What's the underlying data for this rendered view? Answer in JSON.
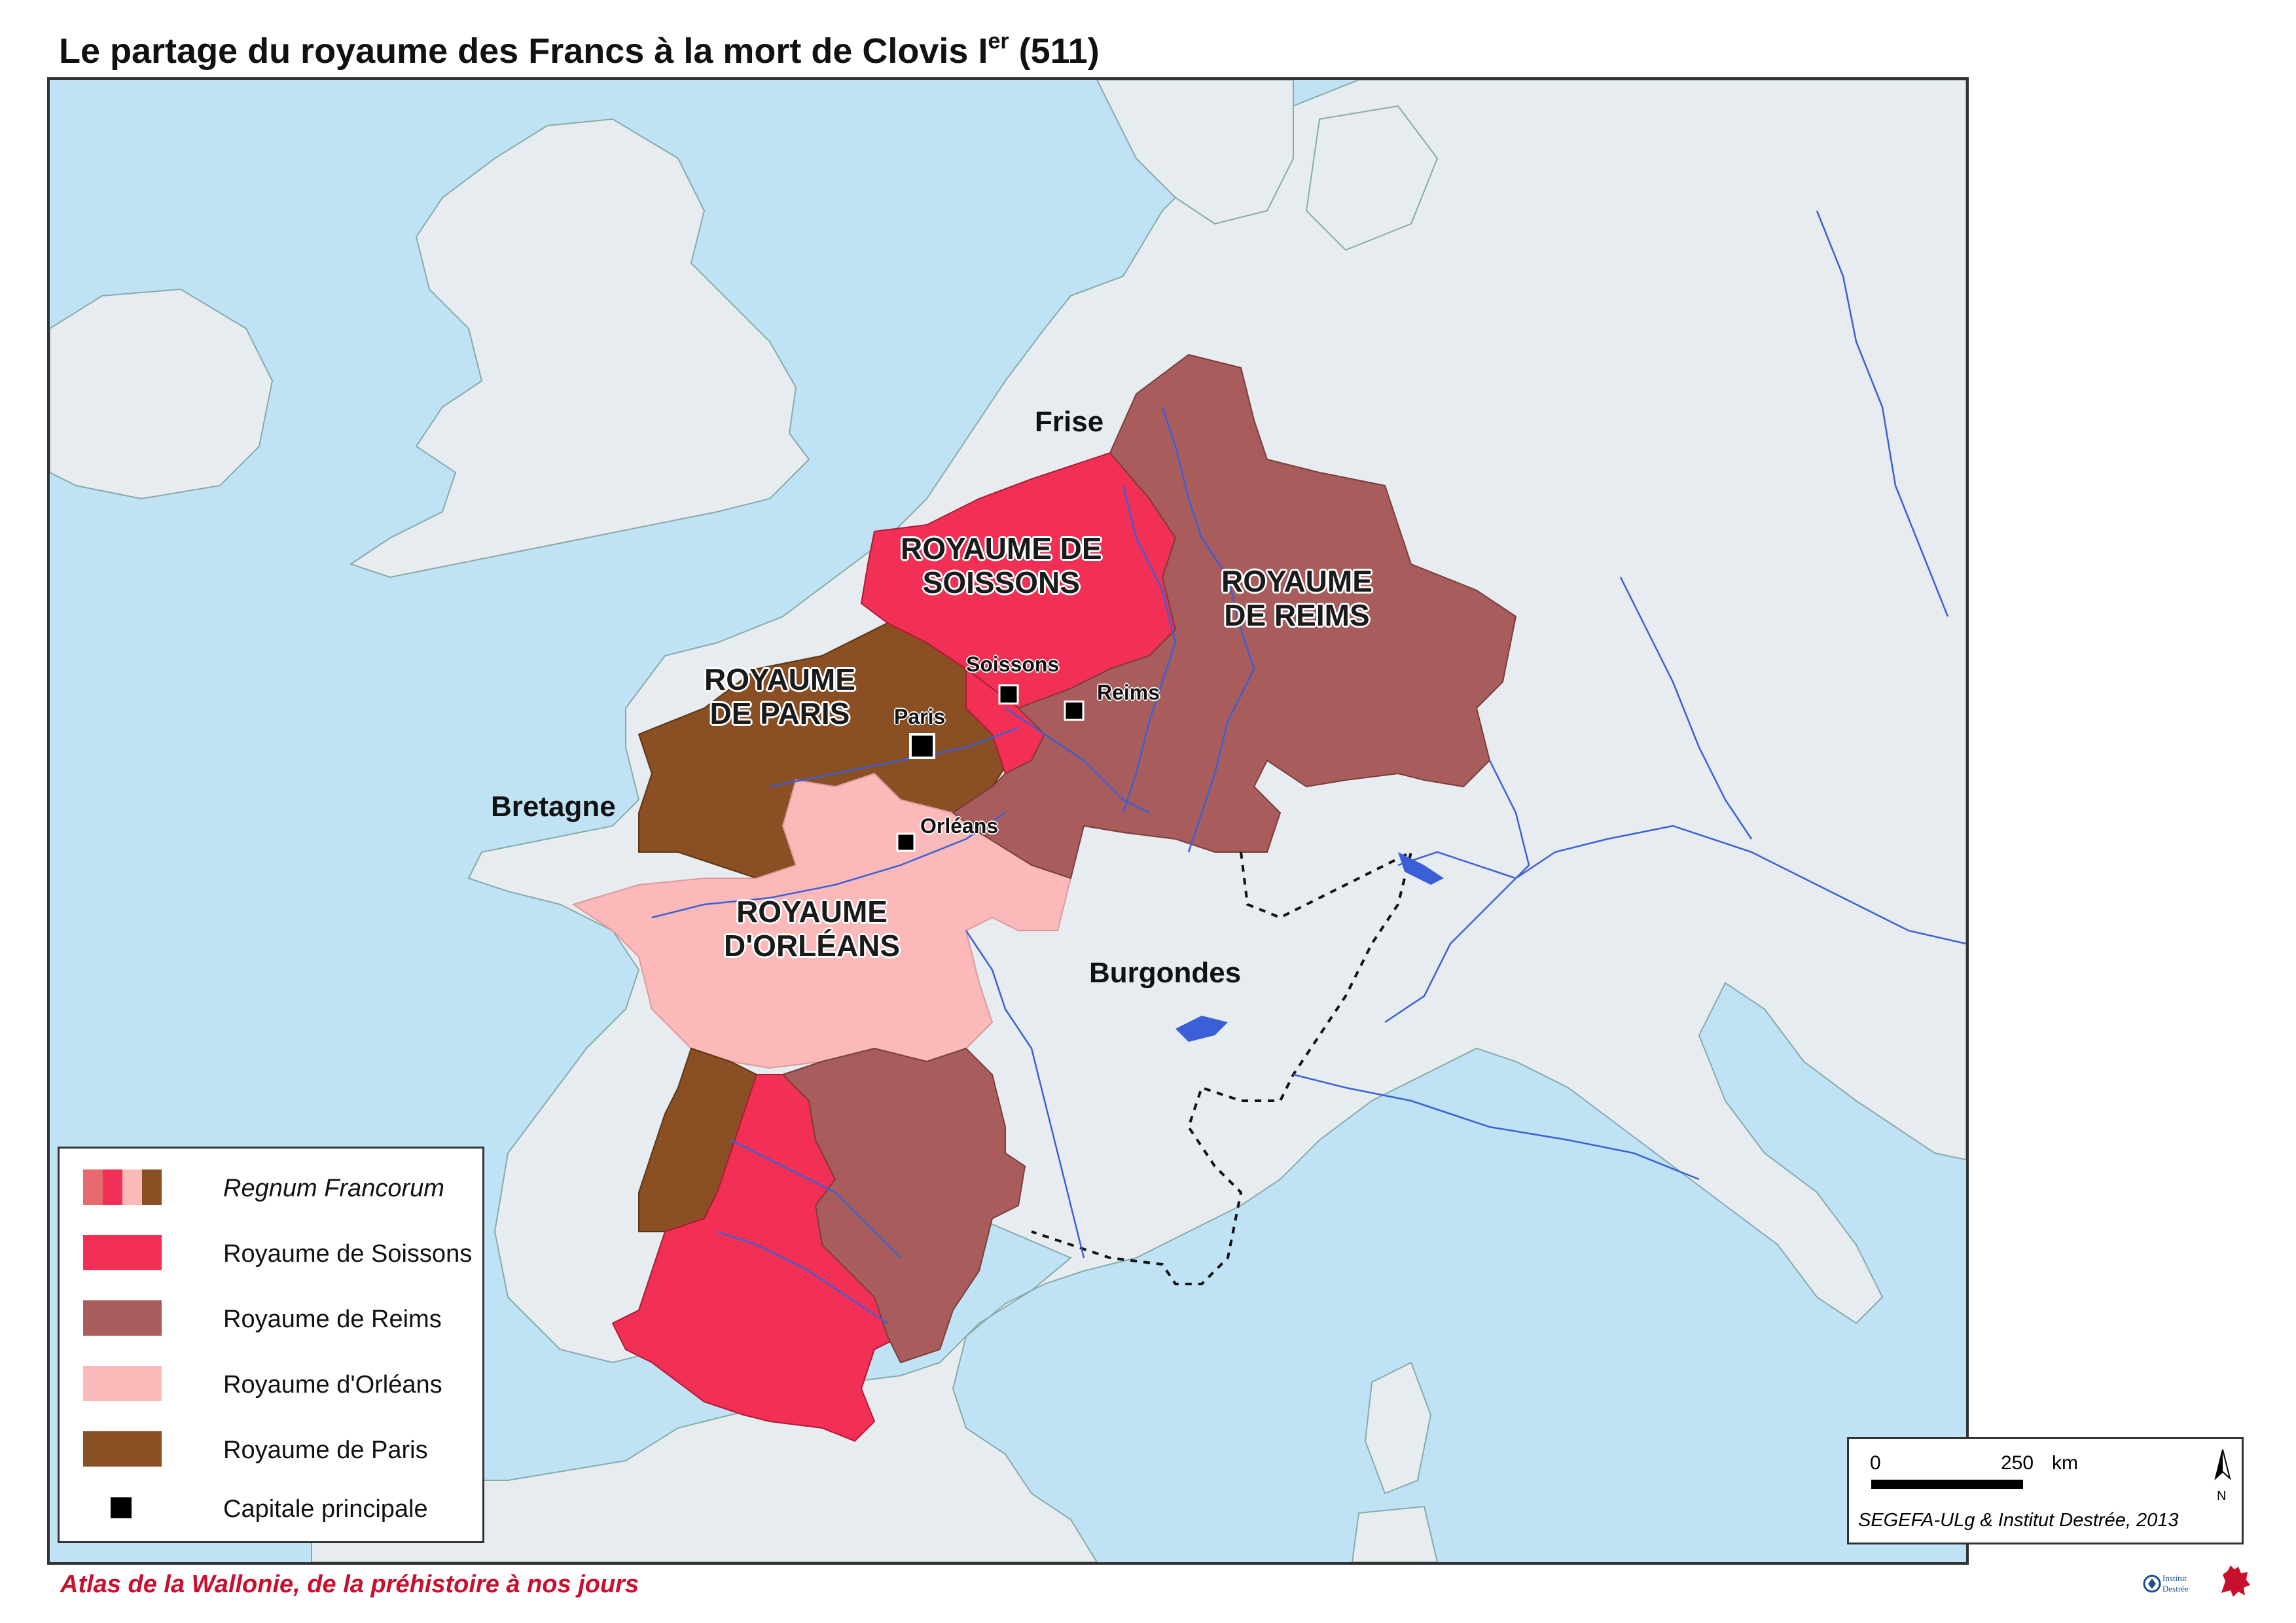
{
  "title": {
    "text": "Le partage du royaume des Francs à la mort de Clovis I",
    "sup": "er",
    "tail": " (511)"
  },
  "colors": {
    "sea": "#bfe3f5",
    "land": "#e6ecef",
    "soissons": "#f23055",
    "reims": "#a85c5c",
    "orleans": "#fbb9b9",
    "paris": "#8a4f23",
    "river": "#3b5fd6",
    "border": "#999999"
  },
  "map": {
    "kingdoms": {
      "soissons": "ROYAUME DE\nSOISSONS",
      "reims": "ROYAUME\nDE REIMS",
      "paris": "ROYAUME\nDE PARIS",
      "orleans": "ROYAUME\nD'ORLÉANS"
    },
    "regions": {
      "frise": "Frise",
      "bretagne": "Bretagne",
      "burgondes": "Burgondes"
    },
    "cities": {
      "soissons": "Soissons",
      "reims": "Reims",
      "paris": "Paris",
      "orleans": "Orléans"
    }
  },
  "legend": {
    "items": [
      {
        "label": "Regnum Francorum",
        "italic": true
      },
      {
        "label": "Royaume de Soissons",
        "color": "#f23055"
      },
      {
        "label": "Royaume de Reims",
        "color": "#a85c5c"
      },
      {
        "label": "Royaume d'Orléans",
        "color": "#fbb9b9"
      },
      {
        "label": "Royaume de Paris",
        "color": "#8a4f23"
      },
      {
        "label": "Capitale principale"
      }
    ]
  },
  "scale": {
    "zero": "0",
    "value": "250",
    "unit": "km",
    "north": "N",
    "credit": "SEGEFA-ULg & Institut Destrée, 2013"
  },
  "footer": {
    "text": "Atlas de la Wallonie, de la préhistoire à nos jours"
  },
  "logos": {
    "institut": "Institut Destrée"
  }
}
